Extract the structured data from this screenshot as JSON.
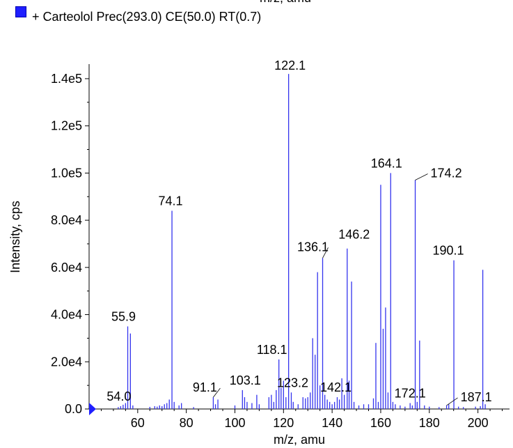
{
  "header": {
    "top_axis_label": "m/z, amu"
  },
  "legend": {
    "label": "+ Carteolol Prec(293.0) CE(50.0) RT(0.7)",
    "color": "#1f1fff"
  },
  "chart_data": {
    "type": "bar",
    "xlabel": "m/z, amu",
    "ylabel": "Intensity, cps",
    "xlim": [
      40,
      213
    ],
    "ylim": [
      0,
      145000
    ],
    "x_ticks": [
      60,
      80,
      100,
      120,
      140,
      160,
      180,
      200
    ],
    "y_ticks": [
      0,
      20000,
      40000,
      60000,
      80000,
      100000,
      120000,
      140000
    ],
    "y_tick_labels": [
      "0.0",
      "2.0e4",
      "4.0e4",
      "6.0e4",
      "8.0e4",
      "1.0e5",
      "1.2e5",
      "1.4e5"
    ],
    "series_color": "#3333ee",
    "peaks": [
      {
        "x": 52.0,
        "y": 800
      },
      {
        "x": 53.0,
        "y": 1200
      },
      {
        "x": 54.0,
        "y": 1800
      },
      {
        "x": 55.0,
        "y": 2500
      },
      {
        "x": 55.9,
        "y": 35000
      },
      {
        "x": 57.0,
        "y": 32000
      },
      {
        "x": 58.0,
        "y": 1500
      },
      {
        "x": 65.0,
        "y": 900
      },
      {
        "x": 67.0,
        "y": 1200
      },
      {
        "x": 68.0,
        "y": 1000
      },
      {
        "x": 69.0,
        "y": 1500
      },
      {
        "x": 70.0,
        "y": 1200
      },
      {
        "x": 71.0,
        "y": 2000
      },
      {
        "x": 72.0,
        "y": 2500
      },
      {
        "x": 73.0,
        "y": 4000
      },
      {
        "x": 74.1,
        "y": 84000
      },
      {
        "x": 75.0,
        "y": 3000
      },
      {
        "x": 77.0,
        "y": 1500
      },
      {
        "x": 78.0,
        "y": 2500
      },
      {
        "x": 83.0,
        "y": 800
      },
      {
        "x": 91.1,
        "y": 5000
      },
      {
        "x": 92.0,
        "y": 2000
      },
      {
        "x": 93.0,
        "y": 4000
      },
      {
        "x": 100.0,
        "y": 1500
      },
      {
        "x": 103.1,
        "y": 8000
      },
      {
        "x": 104.0,
        "y": 5000
      },
      {
        "x": 105.0,
        "y": 3000
      },
      {
        "x": 107.0,
        "y": 2500
      },
      {
        "x": 109.0,
        "y": 6000
      },
      {
        "x": 110.0,
        "y": 2000
      },
      {
        "x": 114.0,
        "y": 5000
      },
      {
        "x": 115.0,
        "y": 6000
      },
      {
        "x": 116.0,
        "y": 3000
      },
      {
        "x": 117.0,
        "y": 8000
      },
      {
        "x": 118.1,
        "y": 21000
      },
      {
        "x": 119.0,
        "y": 9000
      },
      {
        "x": 120.0,
        "y": 12000
      },
      {
        "x": 121.0,
        "y": 5000
      },
      {
        "x": 122.1,
        "y": 142000
      },
      {
        "x": 123.2,
        "y": 7000
      },
      {
        "x": 124.0,
        "y": 3000
      },
      {
        "x": 126.0,
        "y": 2000
      },
      {
        "x": 128.0,
        "y": 5000
      },
      {
        "x": 129.0,
        "y": 4500
      },
      {
        "x": 130.0,
        "y": 5000
      },
      {
        "x": 131.0,
        "y": 7000
      },
      {
        "x": 132.0,
        "y": 30000
      },
      {
        "x": 133.0,
        "y": 23000
      },
      {
        "x": 134.0,
        "y": 58000
      },
      {
        "x": 135.0,
        "y": 10000
      },
      {
        "x": 136.1,
        "y": 64000
      },
      {
        "x": 137.0,
        "y": 6000
      },
      {
        "x": 138.0,
        "y": 4000
      },
      {
        "x": 139.0,
        "y": 3000
      },
      {
        "x": 140.0,
        "y": 2000
      },
      {
        "x": 141.0,
        "y": 3000
      },
      {
        "x": 142.1,
        "y": 5000
      },
      {
        "x": 143.0,
        "y": 4000
      },
      {
        "x": 144.0,
        "y": 13000
      },
      {
        "x": 145.0,
        "y": 6000
      },
      {
        "x": 146.2,
        "y": 68000
      },
      {
        "x": 147.0,
        "y": 12000
      },
      {
        "x": 148.0,
        "y": 54000
      },
      {
        "x": 149.0,
        "y": 3000
      },
      {
        "x": 151.0,
        "y": 1500
      },
      {
        "x": 153.0,
        "y": 2000
      },
      {
        "x": 155.0,
        "y": 2000
      },
      {
        "x": 157.0,
        "y": 4500
      },
      {
        "x": 158.0,
        "y": 28000
      },
      {
        "x": 159.0,
        "y": 3000
      },
      {
        "x": 160.0,
        "y": 95000
      },
      {
        "x": 161.0,
        "y": 34000
      },
      {
        "x": 162.0,
        "y": 43000
      },
      {
        "x": 163.0,
        "y": 7000
      },
      {
        "x": 164.1,
        "y": 100000
      },
      {
        "x": 165.0,
        "y": 3000
      },
      {
        "x": 166.0,
        "y": 2000
      },
      {
        "x": 168.0,
        "y": 1500
      },
      {
        "x": 170.0,
        "y": 1000
      },
      {
        "x": 172.1,
        "y": 2500
      },
      {
        "x": 173.0,
        "y": 1500
      },
      {
        "x": 174.2,
        "y": 97000
      },
      {
        "x": 175.0,
        "y": 3000
      },
      {
        "x": 176.0,
        "y": 29000
      },
      {
        "x": 178.0,
        "y": 1500
      },
      {
        "x": 180.0,
        "y": 1000
      },
      {
        "x": 184.0,
        "y": 800
      },
      {
        "x": 187.1,
        "y": 1500
      },
      {
        "x": 188.0,
        "y": 2000
      },
      {
        "x": 190.1,
        "y": 63000
      },
      {
        "x": 192.0,
        "y": 1000
      },
      {
        "x": 194.0,
        "y": 800
      },
      {
        "x": 199.0,
        "y": 1000
      },
      {
        "x": 201.0,
        "y": 1200
      },
      {
        "x": 202.0,
        "y": 59000
      },
      {
        "x": 203.0,
        "y": 2000
      }
    ],
    "annotations": [
      {
        "text": "54.0",
        "x": 54.0,
        "y": 1800,
        "dx": -6,
        "dy": -6
      },
      {
        "text": "55.9",
        "x": 55.9,
        "y": 35000,
        "dx": -6,
        "dy": -8
      },
      {
        "text": "74.1",
        "x": 74.1,
        "y": 84000,
        "dx": -2,
        "dy": -8
      },
      {
        "text": "91.1",
        "x": 91.1,
        "y": 5000,
        "dx": -12,
        "dy": -8,
        "leader": true
      },
      {
        "text": "103.1",
        "x": 103.1,
        "y": 8000,
        "dx": 4,
        "dy": -8
      },
      {
        "text": "118.1",
        "x": 118.1,
        "y": 21000,
        "dx": -10,
        "dy": -8
      },
      {
        "text": "122.1",
        "x": 122.1,
        "y": 142000,
        "dx": 2,
        "dy": -6
      },
      {
        "text": "123.2",
        "x": 123.2,
        "y": 7000,
        "dx": 2,
        "dy": -8
      },
      {
        "text": "136.1",
        "x": 136.1,
        "y": 64000,
        "dx": -14,
        "dy": -10,
        "leader": true
      },
      {
        "text": "142.1",
        "x": 142.1,
        "y": 5000,
        "dx": -2,
        "dy": -8
      },
      {
        "text": "146.2",
        "x": 146.2,
        "y": 68000,
        "dx": 10,
        "dy": -14
      },
      {
        "text": "164.1",
        "x": 164.1,
        "y": 100000,
        "dx": -6,
        "dy": -8
      },
      {
        "text": "172.1",
        "x": 172.1,
        "y": 2500,
        "dx": 0,
        "dy": -8
      },
      {
        "text": "174.2",
        "x": 174.2,
        "y": 97000,
        "dx": 22,
        "dy": -4,
        "leader": true
      },
      {
        "text": "190.1",
        "x": 190.1,
        "y": 63000,
        "dx": -8,
        "dy": -8
      },
      {
        "text": "187.1",
        "x": 187.1,
        "y": 1500,
        "dx": 20,
        "dy": -6,
        "leader": true
      }
    ]
  }
}
